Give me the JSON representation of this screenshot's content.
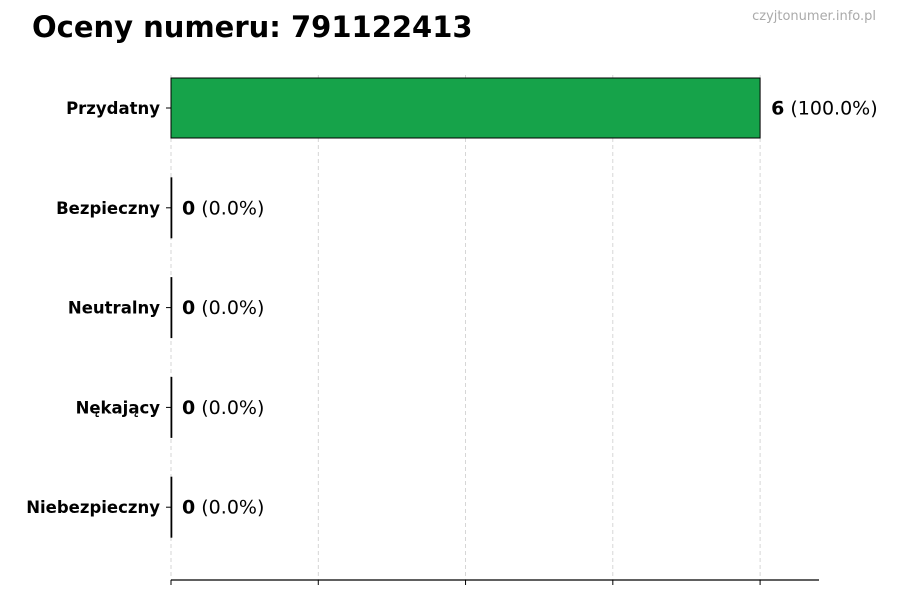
{
  "header": {
    "title": "Oceny numeru: 791122413",
    "watermark": "czyjtonumer.info.pl"
  },
  "chart_data": {
    "type": "bar",
    "orientation": "horizontal",
    "title": "Oceny numeru: 791122413",
    "categories": [
      "Przydatny",
      "Bezpieczny",
      "Neutralny",
      "Nękający",
      "Niebezpieczny"
    ],
    "values": [
      6,
      0,
      0,
      0,
      0
    ],
    "percents": [
      "100.0%",
      "0.0%",
      "0.0%",
      "0.0%",
      "0.0%"
    ],
    "data_labels": [
      {
        "count": "6",
        "pct": "(100.0%)"
      },
      {
        "count": "0",
        "pct": "(0.0%)"
      },
      {
        "count": "0",
        "pct": "(0.0%)"
      },
      {
        "count": "0",
        "pct": "(0.0%)"
      },
      {
        "count": "0",
        "pct": "(0.0%)"
      }
    ],
    "xlim": [
      0,
      6.6
    ],
    "xticks": [
      0,
      1.5,
      3,
      4.5,
      6
    ],
    "xtick_labels_shown": false,
    "grid": "x dashed",
    "bar_color": "#16a34a",
    "bar_edge_color": "#000000",
    "xlabel": "",
    "ylabel": ""
  }
}
